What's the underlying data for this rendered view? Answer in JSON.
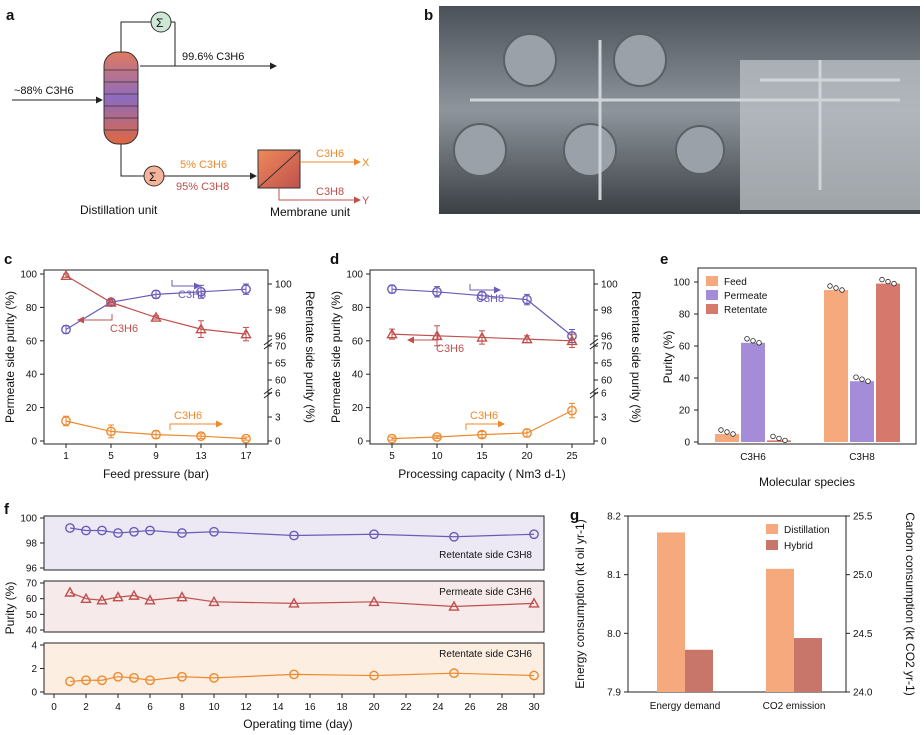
{
  "panels": {
    "a": {
      "label": "a",
      "feed_text": "~88% C3H6",
      "top_product_text": "99.6% C3H6",
      "bottom_text_1": "5% C3H6",
      "bottom_text_2": "95% C3H8",
      "out_x_label": "C3H6",
      "out_x_suffix": "X",
      "out_y_label": "C3H8",
      "out_y_suffix": "Y",
      "distillation_label": "Distillation unit",
      "membrane_label": "Membrane unit"
    },
    "b": {
      "label": "b"
    }
  },
  "colors": {
    "purple": "#6a5cb8",
    "red": "#c0504d",
    "orange": "#ee8a2e",
    "feed_bar": "#f7a97e",
    "permeate_bar": "#a48cd9",
    "retentate_bar": "#d7786c",
    "distillation_bar": "#f7a97e",
    "hybrid_bar": "#c8756a"
  },
  "chart_data": [
    {
      "panel": "c",
      "type": "line",
      "xlabel": "Feed pressure (bar)",
      "ylabel_left": "Permeate side purity (%)",
      "ylabel_right": "Retentate side purity (%)",
      "x": [
        1,
        5,
        9,
        13,
        17
      ],
      "xticks": [
        "1",
        "5",
        "9",
        "13",
        "17"
      ],
      "yticks_left": [
        "0",
        "20",
        "40",
        "60",
        "80",
        "100"
      ],
      "yticks_right": [
        "0",
        "3",
        "6",
        "60",
        "65",
        "70",
        "96",
        "98",
        "100"
      ],
      "series": [
        {
          "name": "C3H8",
          "side": "retentate",
          "values": [
            96.5,
            98.6,
            99.2,
            99.4,
            99.6
          ],
          "errors": [
            0.3,
            0.2,
            0.3,
            0.5,
            0.4
          ]
        },
        {
          "name": "C3H6",
          "side": "permeate",
          "values": [
            99,
            83,
            74,
            67,
            64
          ],
          "errors": [
            1,
            2,
            1,
            5,
            4
          ]
        },
        {
          "name": "C3H6",
          "side": "retentate",
          "values": [
            2.5,
            1.2,
            0.8,
            0.6,
            0.3
          ],
          "errors": [
            0.6,
            0.8,
            0.5,
            0.3,
            0.2
          ]
        }
      ],
      "annotations": [
        "C3H8",
        "C3H6",
        "C3H6"
      ]
    },
    {
      "panel": "d",
      "type": "line",
      "xlabel": "Processing capacity ( Nm3 d-1)",
      "ylabel_left": "Permeate side purity (%)",
      "ylabel_right": "Retentate side purity (%)",
      "x": [
        5,
        10,
        15,
        20,
        25
      ],
      "xticks": [
        "5",
        "10",
        "15",
        "20",
        "25"
      ],
      "yticks_left": [
        "0",
        "20",
        "40",
        "60",
        "80",
        "100"
      ],
      "yticks_right": [
        "0",
        "3",
        "6",
        "60",
        "65",
        "70",
        "96",
        "98",
        "100"
      ],
      "series": [
        {
          "name": "C3H8",
          "side": "retentate",
          "values": [
            99.6,
            99.4,
            99.1,
            98.8,
            96.0
          ],
          "errors": [
            0.3,
            0.4,
            0.3,
            0.4,
            0.5
          ]
        },
        {
          "name": "C3H6",
          "side": "permeate",
          "values": [
            64,
            63,
            62,
            61,
            60
          ],
          "errors": [
            3,
            6,
            4,
            2,
            4
          ]
        },
        {
          "name": "C3H6",
          "side": "retentate",
          "values": [
            0.3,
            0.5,
            0.8,
            1.0,
            3.8
          ],
          "errors": [
            0.2,
            0.2,
            0.4,
            0.5,
            0.9
          ]
        }
      ],
      "annotations": [
        "C3H8",
        "C3H6",
        "C3H6"
      ]
    },
    {
      "panel": "e",
      "type": "bar",
      "xlabel": "Molecular species",
      "ylabel": "Purity (%)",
      "categories": [
        "C3H6",
        "C3H8"
      ],
      "yticks": [
        "0",
        "20",
        "40",
        "60",
        "80",
        "100"
      ],
      "series": [
        {
          "name": "Feed",
          "values": [
            5,
            95
          ]
        },
        {
          "name": "Permeate",
          "values": [
            62,
            38
          ]
        },
        {
          "name": "Retentate",
          "values": [
            1,
            99
          ]
        }
      ]
    },
    {
      "panel": "f",
      "type": "line",
      "xlabel": "Operating time (day)",
      "ylabel": "Purity (%)",
      "x": [
        1,
        2,
        3,
        4,
        5,
        6,
        8,
        10,
        15,
        20,
        25,
        30
      ],
      "xticks": [
        "0",
        "2",
        "4",
        "6",
        "8",
        "10",
        "12",
        "14",
        "16",
        "18",
        "20",
        "22",
        "24",
        "26",
        "28",
        "30"
      ],
      "subplots": [
        {
          "name": "Retentate side C3H8",
          "yticks": [
            "96",
            "98",
            "100"
          ],
          "ylim": [
            96,
            100
          ],
          "values": [
            99.2,
            99.0,
            99.0,
            98.8,
            98.9,
            99.0,
            98.8,
            98.9,
            98.6,
            98.7,
            98.5,
            98.7
          ]
        },
        {
          "name": "Permeate side C3H6",
          "yticks": [
            "40",
            "50",
            "60",
            "70"
          ],
          "ylim": [
            40,
            70
          ],
          "values": [
            64,
            60,
            59,
            61,
            62,
            59,
            61,
            58,
            57,
            58,
            55,
            57
          ]
        },
        {
          "name": "Retentate side C3H6",
          "yticks": [
            "0",
            "2",
            "4"
          ],
          "ylim": [
            0,
            4
          ],
          "values": [
            0.9,
            1.0,
            1.0,
            1.3,
            1.2,
            1.0,
            1.3,
            1.2,
            1.5,
            1.4,
            1.6,
            1.4
          ]
        }
      ]
    },
    {
      "panel": "g",
      "type": "bar",
      "ylabel_left": "Energy consumption (kt oil yr-1)",
      "ylabel_right": "Carbon consumption (kt CO2 yr-1)",
      "categories": [
        "Energy demand",
        "CO2 emission"
      ],
      "yticks_left": [
        "7.9",
        "8.0",
        "8.1",
        "8.2"
      ],
      "yticks_right": [
        "24.0",
        "24.5",
        "25.0",
        "25.5"
      ],
      "ylim_left": [
        7.9,
        8.2
      ],
      "ylim_right": [
        24.0,
        25.5
      ],
      "series": [
        {
          "name": "Distillation",
          "values": [
            8.172,
            25.05
          ]
        },
        {
          "name": "Hybrid",
          "values": [
            7.972,
            24.46
          ]
        }
      ]
    }
  ]
}
